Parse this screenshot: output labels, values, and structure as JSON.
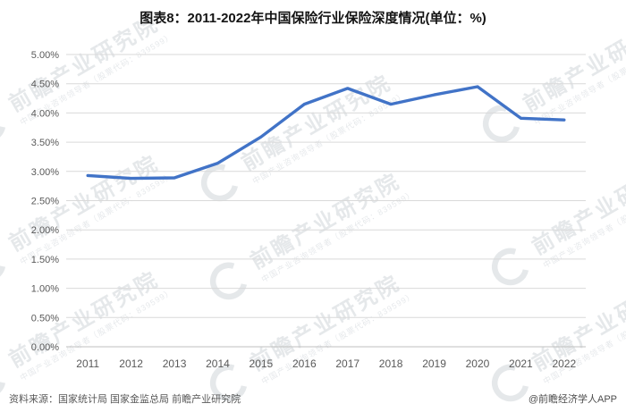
{
  "header": {
    "title": "图表8：2011-2022年中国保险行业保险深度情况(单位：%)"
  },
  "chart_data": {
    "type": "line",
    "title": "图表8：2011-2022年中国保险行业保险深度情况(单位：%)",
    "categories": [
      "2011",
      "2012",
      "2013",
      "2014",
      "2015",
      "2016",
      "2017",
      "2018",
      "2019",
      "2020",
      "2021",
      "2022"
    ],
    "series": [
      {
        "name": "保险深度",
        "values": [
          2.93,
          2.88,
          2.89,
          3.14,
          3.59,
          4.15,
          4.42,
          4.15,
          4.31,
          4.45,
          3.91,
          3.88
        ]
      }
    ],
    "xlabel": "",
    "ylabel": "",
    "ylim": [
      0,
      5
    ],
    "ytick_step": 0.5,
    "ytick_labels": [
      "0.00%",
      "0.50%",
      "1.00%",
      "1.50%",
      "2.00%",
      "2.50%",
      "3.00%",
      "3.50%",
      "4.00%",
      "4.50%",
      "5.00%"
    ],
    "grid": true,
    "legend_position": "none"
  },
  "colors": {
    "line": "#4173c7",
    "grid": "#d9d9d9",
    "axis_line": "#bfbfbf",
    "axis_text": "#595959",
    "title_text": "#141414",
    "footer_text": "#595959",
    "watermark": "#8d99a5"
  },
  "watermark": {
    "logo_icon": "circle-c-logo",
    "text": "前瞻产业研究院",
    "subtext": "中国产业咨询领导者（股票代码：839599）"
  },
  "footer": {
    "source": "资料来源：国家统计局 国家金监总局 前瞻产业研究院",
    "brand": "@前瞻经济学人APP"
  }
}
